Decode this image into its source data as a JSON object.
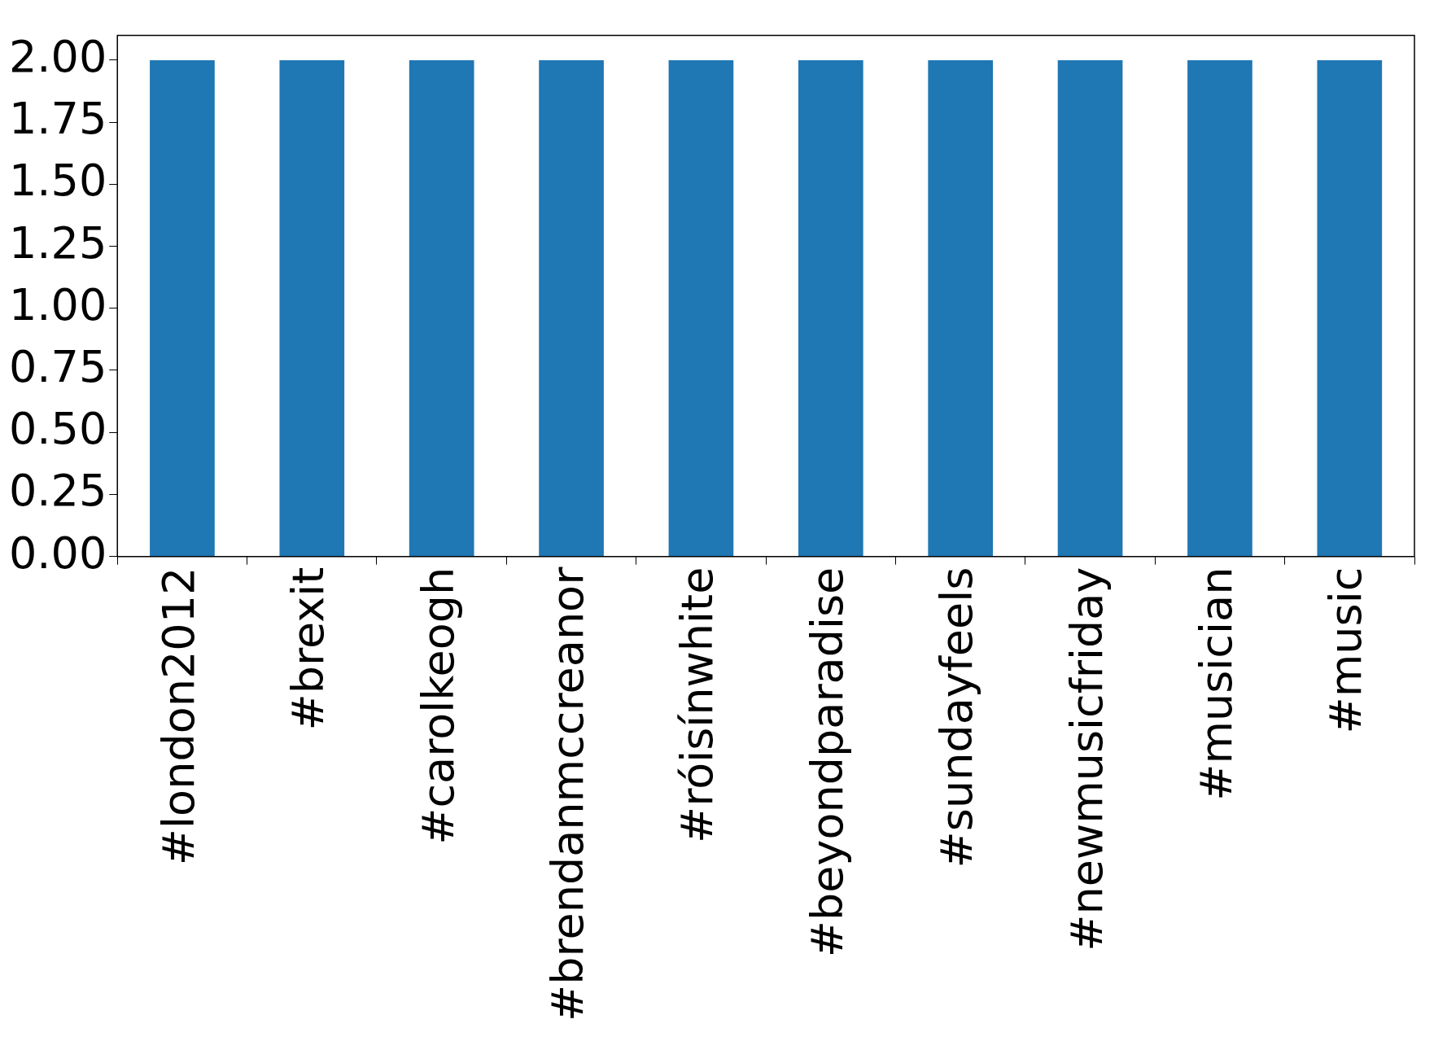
{
  "chart_data": {
    "type": "bar",
    "categories": [
      "#london2012",
      "#brexit",
      "#carolkeogh",
      "#brendanmccreanor",
      "#róisínwhite",
      "#beyondparadise",
      "#sundayfeels",
      "#newmusicfriday",
      "#musician",
      "#music"
    ],
    "values": [
      2,
      2,
      2,
      2,
      2,
      2,
      2,
      2,
      2,
      2
    ],
    "color": "#1f77b4",
    "ylim": [
      0,
      2.1
    ],
    "yticks": [
      {
        "value": 0,
        "label": "0.00"
      },
      {
        "value": 0.25,
        "label": "0.25"
      },
      {
        "value": 0.5,
        "label": "0.50"
      },
      {
        "value": 0.75,
        "label": "0.75"
      },
      {
        "value": 1,
        "label": "1.00"
      },
      {
        "value": 1.25,
        "label": "1.25"
      },
      {
        "value": 1.5,
        "label": "1.50"
      },
      {
        "value": 1.75,
        "label": "1.75"
      },
      {
        "value": 2,
        "label": "2.00"
      }
    ]
  }
}
